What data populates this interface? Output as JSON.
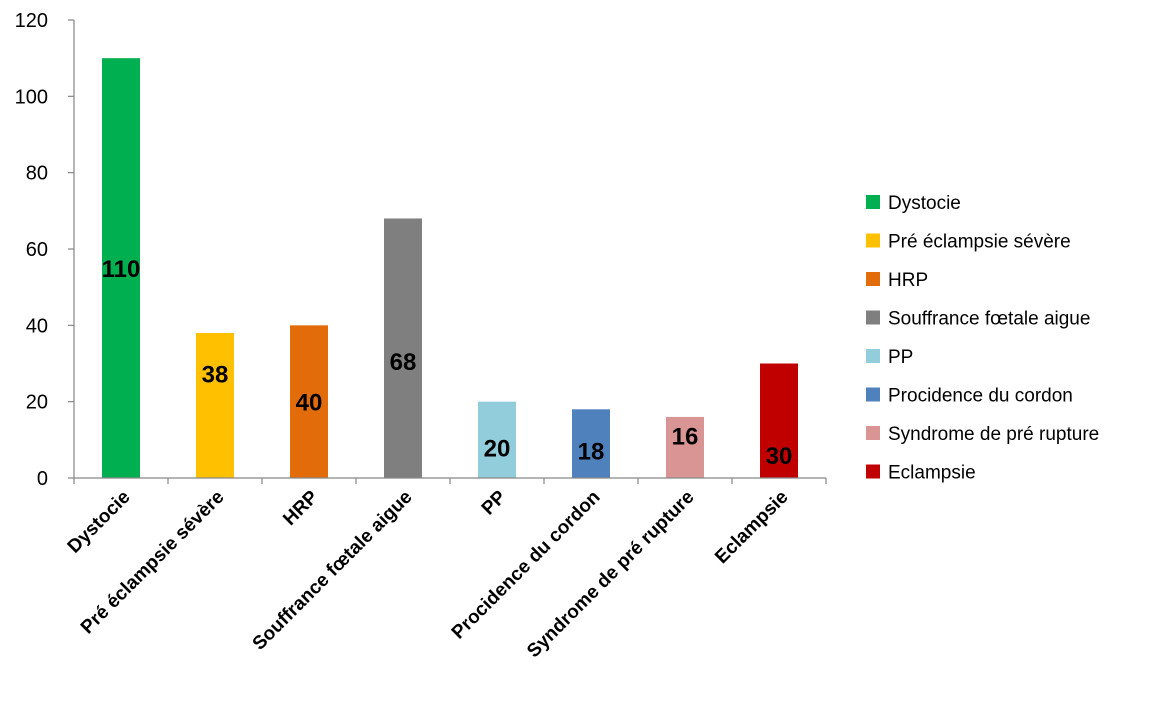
{
  "chart_data": {
    "type": "bar",
    "title": "",
    "xlabel": "",
    "ylabel": "",
    "ylim": [
      0,
      120
    ],
    "yticks": [
      0,
      20,
      40,
      60,
      80,
      100,
      120
    ],
    "grid": false,
    "legend_position": "right",
    "categories": [
      "Dystocie",
      "Pré éclampsie sévère",
      "HRP",
      "Souffrance fœtale aigue",
      "PP",
      "Procidence du cordon",
      "Syndrome de pré rupture",
      "Eclampsie"
    ],
    "values": [
      110,
      38,
      40,
      68,
      20,
      18,
      16,
      30
    ],
    "data_labels": [
      "110",
      "38",
      "40",
      "68",
      "20",
      "18",
      "16",
      "30"
    ],
    "colors": [
      "#00b050",
      "#ffc000",
      "#e36c0a",
      "#7f7f7f",
      "#92cddc",
      "#4f81bd",
      "#d99594",
      "#c00000"
    ]
  }
}
